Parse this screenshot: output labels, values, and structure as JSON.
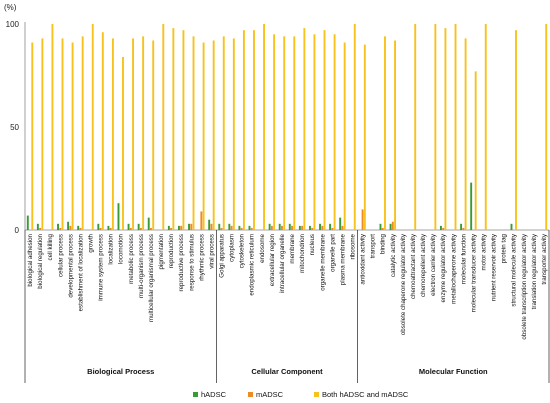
{
  "chart_data": {
    "type": "bar",
    "y_unit": "(%)",
    "ylim": [
      0,
      100
    ],
    "yticks": [
      0,
      50,
      100
    ],
    "grid": false,
    "legend_position": "bottom",
    "colors": {
      "hADSC": "#3a9a34",
      "mADSC": "#f08a24",
      "both": "#f7c21b"
    },
    "series": [
      {
        "key": "hADSC",
        "name": "hADSC"
      },
      {
        "key": "mADSC",
        "name": "mADSC"
      },
      {
        "key": "both",
        "name": "Both hADSC and mADSC"
      }
    ],
    "groups": [
      {
        "name": "Biological Process",
        "categories": [
          {
            "label": "biological adhesion",
            "values": [
              7,
              0,
              91
            ]
          },
          {
            "label": "biological regulation",
            "values": [
              3,
              1,
              93
            ]
          },
          {
            "label": "cell killing",
            "values": [
              0,
              0,
              100
            ]
          },
          {
            "label": "cellular process",
            "values": [
              3,
              1,
              93
            ]
          },
          {
            "label": "developmental process",
            "values": [
              4,
              2,
              91
            ]
          },
          {
            "label": "establishment of localization",
            "values": [
              2,
              1,
              94
            ]
          },
          {
            "label": "growth",
            "values": [
              0,
              0,
              100
            ]
          },
          {
            "label": "immune system process",
            "values": [
              3,
              1,
              96
            ]
          },
          {
            "label": "localization",
            "values": [
              2,
              1,
              93
            ]
          },
          {
            "label": "locomotion",
            "values": [
              13,
              0,
              84
            ]
          },
          {
            "label": "metabolic process",
            "values": [
              3,
              1,
              93
            ]
          },
          {
            "label": "multi-organism process",
            "values": [
              3,
              1,
              94
            ]
          },
          {
            "label": "multicellular organismal process",
            "values": [
              6,
              1,
              92
            ]
          },
          {
            "label": "pigmentation",
            "values": [
              0,
              0,
              100
            ]
          },
          {
            "label": "reproduction",
            "values": [
              2,
              1,
              98
            ]
          },
          {
            "label": "reproductive process",
            "values": [
              2,
              2,
              97
            ]
          },
          {
            "label": "response to stimulus",
            "values": [
              3,
              3,
              94
            ]
          },
          {
            "label": "rhythmic process",
            "values": [
              0,
              9,
              91
            ]
          },
          {
            "label": "viral process",
            "values": [
              5,
              3,
              92
            ]
          }
        ]
      },
      {
        "name": "Cellular Component",
        "categories": [
          {
            "label": "Golgi apparatus",
            "values": [
              3,
              1,
              94
            ]
          },
          {
            "label": "cytoplasm",
            "values": [
              3,
              2,
              93
            ]
          },
          {
            "label": "cytoskeleton",
            "values": [
              2,
              1,
              97
            ]
          },
          {
            "label": "endoplasmic reticulum",
            "values": [
              2,
              1,
              97
            ]
          },
          {
            "label": "endosome",
            "values": [
              0,
              0,
              100
            ]
          },
          {
            "label": "extracellular region",
            "values": [
              3,
              2,
              95
            ]
          },
          {
            "label": "intracellular organelle",
            "values": [
              3,
              2,
              94
            ]
          },
          {
            "label": "membrane",
            "values": [
              3,
              2,
              94
            ]
          },
          {
            "label": "mitochondrion",
            "values": [
              2,
              2,
              98
            ]
          },
          {
            "label": "nucleus",
            "values": [
              2,
              1,
              95
            ]
          },
          {
            "label": "organelle membrane",
            "values": [
              3,
              2,
              97
            ]
          },
          {
            "label": "organelle part",
            "values": [
              3,
              1,
              95
            ]
          },
          {
            "label": "plasma membrane",
            "values": [
              6,
              2,
              91
            ]
          },
          {
            "label": "ribosome",
            "values": [
              0,
              0,
              100
            ]
          }
        ]
      },
      {
        "name": "Molecular Function",
        "categories": [
          {
            "label": "antioxidant activity",
            "values": [
              0,
              10,
              90
            ]
          },
          {
            "label": "transport",
            "values": [
              0,
              0,
              0
            ]
          },
          {
            "label": "binding",
            "values": [
              3,
              1,
              94
            ]
          },
          {
            "label": "catalytic activity",
            "values": [
              3,
              4,
              92
            ]
          },
          {
            "label": "obsolete chaperone regulator activity",
            "values": [
              0,
              0,
              0
            ]
          },
          {
            "label": "chemoattractant activity",
            "values": [
              0,
              0,
              100
            ]
          },
          {
            "label": "chemorepellent activity",
            "values": [
              0,
              0,
              0
            ]
          },
          {
            "label": "electron carrier activity",
            "values": [
              0,
              0,
              100
            ]
          },
          {
            "label": "enzyme regulator activity",
            "values": [
              2,
              1,
              98
            ]
          },
          {
            "label": "metallochaperone activity",
            "values": [
              0,
              0,
              100
            ]
          },
          {
            "label": "molecular function",
            "values": [
              3,
              1,
              93
            ]
          },
          {
            "label": "molecular transducer activity",
            "values": [
              23,
              0,
              77
            ]
          },
          {
            "label": "motor activity",
            "values": [
              0,
              0,
              100
            ]
          },
          {
            "label": "nutrient reservoir activity",
            "values": [
              0,
              0,
              0
            ]
          },
          {
            "label": "protein tag",
            "values": [
              0,
              0,
              0
            ]
          },
          {
            "label": "structural molecule activity",
            "values": [
              3,
              0,
              97
            ]
          },
          {
            "label": "obsolete transcription regulator activity",
            "values": [
              0,
              0,
              0
            ]
          },
          {
            "label": "translation regulator activity",
            "values": [
              0,
              0,
              0
            ]
          },
          {
            "label": "transporter activity",
            "values": [
              0,
              0,
              100
            ]
          }
        ]
      }
    ]
  }
}
